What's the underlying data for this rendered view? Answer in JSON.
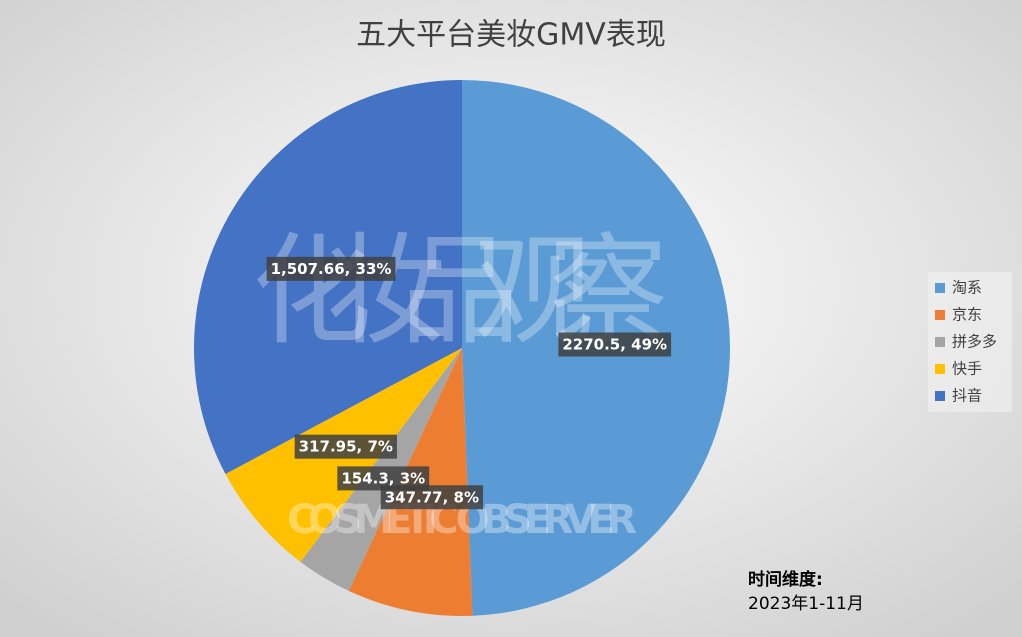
{
  "chart_data": {
    "type": "pie",
    "title": "五大平台美妆GMV表现",
    "categories": [
      "淘系",
      "京东",
      "拼多多",
      "快手",
      "抖音"
    ],
    "values": [
      2270.5,
      347.77,
      154.3,
      317.95,
      1507.66
    ],
    "value_labels": [
      "2270.5, 49%",
      "347.77, 8%",
      "154.3, 3%",
      "317.95, 7%",
      "1,507.66, 33%"
    ],
    "colors": [
      "#5b9bd5",
      "#ed7d31",
      "#a5a5a5",
      "#ffc000",
      "#4472c4"
    ],
    "legend": "right",
    "annotation": {
      "title": "时间维度:",
      "text": "2023年1-11月"
    },
    "watermark": {
      "cn": "化妆品观察",
      "en": "COSMETIC OBSERVER"
    }
  }
}
